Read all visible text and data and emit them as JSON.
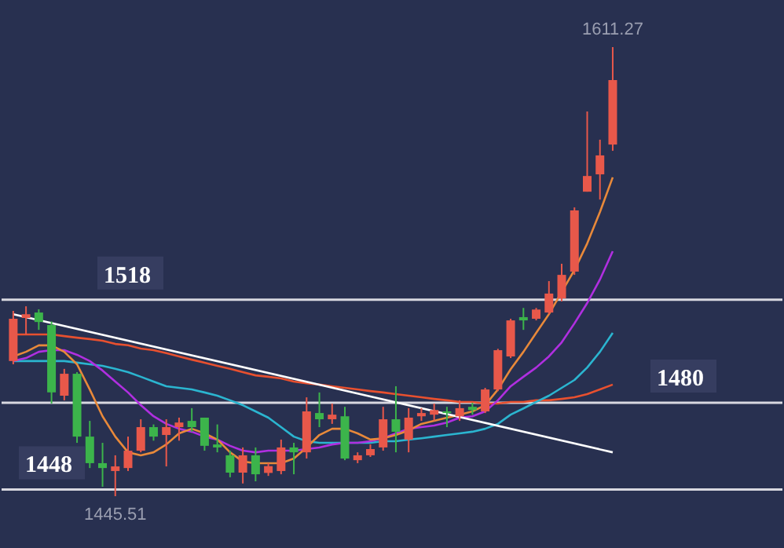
{
  "chart_data": {
    "type": "candlestick",
    "categories": [
      null,
      null,
      null,
      null,
      null,
      null,
      null,
      null,
      null,
      null,
      null,
      null,
      null,
      null,
      null,
      null,
      null,
      null,
      null,
      null,
      null,
      null,
      null,
      null,
      null,
      null,
      null,
      null,
      null,
      null,
      null,
      null,
      null,
      null,
      null,
      null,
      null,
      null,
      null,
      null,
      null,
      null,
      null,
      null,
      null,
      null,
      null,
      null
    ],
    "ohlc": [
      [
        1495.4,
        1513.9,
        1494.2,
        1511.0
      ],
      [
        1511.3,
        1515.6,
        1505.2,
        1512.7
      ],
      [
        1513.3,
        1514.5,
        1506.9,
        1509.8
      ],
      [
        1508.7,
        1510.0,
        1479.7,
        1483.8
      ],
      [
        1482.6,
        1492.5,
        1480.9,
        1490.7
      ],
      [
        1490.7,
        1491.3,
        1465.2,
        1467.5
      ],
      [
        1467.5,
        1473.3,
        1455.9,
        1457.7
      ],
      [
        1457.7,
        1465.2,
        1449.0,
        1455.9
      ],
      [
        1454.8,
        1460.6,
        1445.51,
        1456.5
      ],
      [
        1455.9,
        1467.5,
        1454.8,
        1462.3
      ],
      [
        1462.3,
        1473.9,
        1461.7,
        1471.0
      ],
      [
        1471.0,
        1472.0,
        1466.0,
        1467.5
      ],
      [
        1468.1,
        1473.9,
        1456.5,
        1471.0
      ],
      [
        1471.0,
        1474.5,
        1466.0,
        1472.7
      ],
      [
        1473.3,
        1478.0,
        1469.3,
        1471.0
      ],
      [
        1474.5,
        1474.5,
        1462.3,
        1464.1
      ],
      [
        1464.6,
        1472.0,
        1461.7,
        1463.5
      ],
      [
        1460.6,
        1462.3,
        1452.5,
        1454.2
      ],
      [
        1454.2,
        1463.5,
        1450.2,
        1460.6
      ],
      [
        1460.6,
        1463.5,
        1451.0,
        1453.6
      ],
      [
        1454.1,
        1457.7,
        1453.0,
        1456.6
      ],
      [
        1454.8,
        1466.4,
        1453.6,
        1463.5
      ],
      [
        1463.5,
        1465.2,
        1453.6,
        1461.7
      ],
      [
        1461.7,
        1482.0,
        1459.4,
        1476.8
      ],
      [
        1476.2,
        1483.8,
        1471.0,
        1473.9
      ],
      [
        1473.9,
        1479.7,
        1472.2,
        1475.6
      ],
      [
        1475.0,
        1478.5,
        1458.8,
        1459.4
      ],
      [
        1458.8,
        1461.7,
        1457.7,
        1460.6
      ],
      [
        1460.6,
        1464.6,
        1460.0,
        1462.9
      ],
      [
        1463.5,
        1478.5,
        1462.3,
        1473.9
      ],
      [
        1473.9,
        1486.1,
        1461.7,
        1469.3
      ],
      [
        1466.4,
        1478.0,
        1461.7,
        1474.5
      ],
      [
        1475.0,
        1478.0,
        1473.3,
        1476.2
      ],
      [
        1475.6,
        1479.7,
        1473.3,
        1477.3
      ],
      [
        1476.8,
        1478.5,
        1471.0,
        1476.2
      ],
      [
        1475.0,
        1480.9,
        1473.3,
        1478.0
      ],
      [
        1478.5,
        1480.0,
        1475.6,
        1477.3
      ],
      [
        1476.8,
        1485.5,
        1476.2,
        1484.9
      ],
      [
        1484.9,
        1499.9,
        1484.3,
        1499.4
      ],
      [
        1497.1,
        1511.0,
        1496.5,
        1510.4
      ],
      [
        1511.6,
        1515.0,
        1506.9,
        1510.4
      ],
      [
        1511.0,
        1515.0,
        1510.4,
        1514.4
      ],
      [
        1513.3,
        1524.9,
        1512.7,
        1520.3
      ],
      [
        1518.5,
        1531.3,
        1517.4,
        1527.2
      ],
      [
        1528.4,
        1552.1,
        1527.2,
        1551.0
      ],
      [
        1557.9,
        1587.5,
        1557.9,
        1563.7
      ],
      [
        1564.3,
        1577.1,
        1555.0,
        1571.3
      ],
      [
        1575.3,
        1611.27,
        1573.0,
        1599.1
      ]
    ],
    "colors": [
      "#e8584a",
      "#e8584a",
      "#3cb44b",
      "#3cb44b",
      "#e8584a",
      "#3cb44b",
      "#3cb44b",
      "#3cb44b",
      "#e8584a",
      "#e8584a",
      "#e8584a",
      "#3cb44b",
      "#e8584a",
      "#e8584a",
      "#3cb44b",
      "#3cb44b",
      "#3cb44b",
      "#3cb44b",
      "#e8584a",
      "#3cb44b",
      "#e8584a",
      "#e8584a",
      "#3cb44b",
      "#e8584a",
      "#3cb44b",
      "#e8584a",
      "#3cb44b",
      "#e8584a",
      "#e8584a",
      "#e8584a",
      "#3cb44b",
      "#e8584a",
      "#e8584a",
      "#e8584a",
      "#3cb44b",
      "#e8584a",
      "#3cb44b",
      "#e8584a",
      "#e8584a",
      "#e8584a",
      "#3cb44b",
      "#e8584a",
      "#e8584a",
      "#e8584a",
      "#e8584a",
      "#e8584a",
      "#e8584a",
      "#e8584a"
    ],
    "series": [
      {
        "type": "line",
        "color": "#e8502f",
        "values": [
          1505.2,
          1505.2,
          1505.2,
          1505.2,
          1504.6,
          1504.0,
          1503.5,
          1502.9,
          1501.7,
          1501.2,
          1500.0,
          1499.4,
          1498.3,
          1497.1,
          1495.9,
          1494.8,
          1493.6,
          1492.5,
          1491.3,
          1490.1,
          1489.6,
          1489.0,
          1487.8,
          1487.2,
          1486.7,
          1486.1,
          1485.5,
          1484.9,
          1484.3,
          1483.8,
          1483.2,
          1482.6,
          1482.0,
          1481.4,
          1480.9,
          1480.3,
          1480.3,
          1479.7,
          1479.7,
          1480.3,
          1480.3,
          1480.9,
          1480.9,
          1481.4,
          1482.0,
          1483.2,
          1484.9,
          1486.7
        ]
      },
      {
        "type": "line",
        "color": "#2bb5d0",
        "values": [
          1495.4,
          1495.4,
          1495.4,
          1495.4,
          1495.4,
          1494.8,
          1494.2,
          1493.6,
          1492.5,
          1491.3,
          1489.6,
          1487.8,
          1486.1,
          1485.5,
          1484.9,
          1483.8,
          1482.6,
          1480.9,
          1479.1,
          1476.8,
          1474.5,
          1471.0,
          1467.5,
          1465.8,
          1465.2,
          1465.2,
          null,
          1465.2,
          1465.2,
          1465.8,
          1465.8,
          1466.4,
          1466.9,
          1467.5,
          1468.1,
          1468.7,
          1469.3,
          1470.4,
          1472.2,
          1475.6,
          1477.9,
          1480.3,
          1482.6,
          1485.5,
          1488.4,
          1493.0,
          1498.8,
          1505.8
        ]
      },
      {
        "type": "line",
        "color": "#b02fe0",
        "values": [
          1495.4,
          1496.5,
          1498.8,
          1499.4,
          1499.4,
          1497.7,
          1495.4,
          1491.9,
          1487.8,
          1483.8,
          1479.1,
          1475.0,
          1472.2,
          1470.4,
          1469.3,
          1467.5,
          1466.4,
          1464.1,
          1462.3,
          1461.7,
          1462.3,
          1462.3,
          1462.3,
          1462.9,
          1463.5,
          1464.6,
          1465.2,
          1465.2,
          1465.8,
          1466.9,
          1468.7,
          1470.4,
          1471.0,
          1471.6,
          1472.7,
          1474.5,
          1475.0,
          1476.8,
          1480.9,
          1486.1,
          1489.6,
          1493.0,
          1497.1,
          1502.3,
          1509.3,
          1516.8,
          1525.5,
          1535.9
        ]
      },
      {
        "type": "line",
        "color": "#e8893a",
        "values": [
          1497.1,
          1498.8,
          1501.2,
          1501.2,
          1498.8,
          1494.2,
          1484.9,
          1475.0,
          1467.5,
          1461.7,
          1460.6,
          1461.7,
          1464.6,
          1468.7,
          1470.4,
          1468.7,
          1466.4,
          1461.7,
          1458.3,
          1457.7,
          1457.7,
          1457.7,
          1459.4,
          1463.5,
          1468.1,
          1470.4,
          1470.4,
          1468.7,
          1466.4,
          1466.9,
          1468.1,
          1469.8,
          1472.2,
          1473.3,
          1474.5,
          1475.6,
          1476.8,
          1479.1,
          1484.9,
          1492.4,
          1498.8,
          1505.8,
          1512.7,
          1520.9,
          1529.0,
          1538.8,
          1550.4,
          1563.2
        ]
      },
      {
        "type": "line",
        "color": "#ffffff",
        "values": [
          1512.7,
          null,
          null,
          null,
          null,
          null,
          null,
          null,
          null,
          null,
          null,
          null,
          null,
          null,
          null,
          null,
          null,
          null,
          null,
          null,
          null,
          null,
          null,
          null,
          null,
          null,
          null,
          null,
          null,
          null,
          null,
          null,
          null,
          null,
          null,
          null,
          null,
          null,
          null,
          null,
          null,
          null,
          null,
          null,
          null,
          null,
          null,
          1461.7
        ]
      }
    ],
    "tick_labels": false,
    "ref_lines": [
      {
        "axis": "y",
        "value": 1518,
        "label": "1518",
        "color": "#d8d8e0"
      },
      {
        "axis": "y",
        "value": 1480,
        "label": "1480",
        "color": "#d8d8e0"
      },
      {
        "axis": "y",
        "value": 1448,
        "label": "1448",
        "color": "#d8d8e0"
      }
    ],
    "annotations": [
      {
        "text": "1611.27",
        "y": 1611.27
      },
      {
        "text": "1445.51",
        "y": 1445.51
      }
    ]
  }
}
